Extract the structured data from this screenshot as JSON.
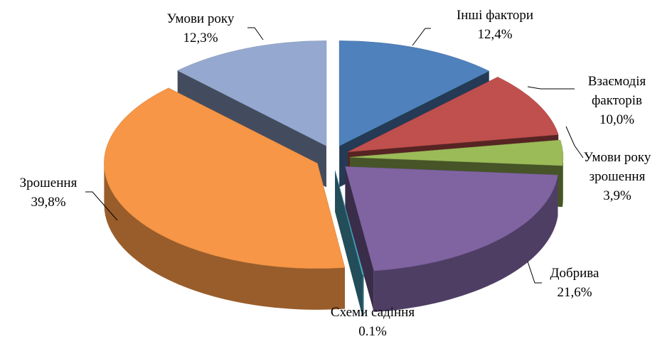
{
  "chart_data": {
    "type": "pie",
    "categories": [
      "Інші фактори",
      "Взаємодія факторів",
      "Умови року зрошення",
      "Добрива",
      "Схеми садіння",
      "Зрошення",
      "Умови року"
    ],
    "values": [
      12.4,
      10.0,
      3.9,
      21.6,
      0.1,
      39.8,
      12.3
    ],
    "value_labels": [
      "12,4%",
      "10,0%",
      "3,9%",
      "21,6%",
      "0.1%",
      "39,8%",
      "12,3%"
    ],
    "colors": [
      "#4f81bd",
      "#c0504d",
      "#9bbb59",
      "#8064a2",
      "#4bacc6",
      "#f79646",
      "#95a9d0"
    ]
  }
}
